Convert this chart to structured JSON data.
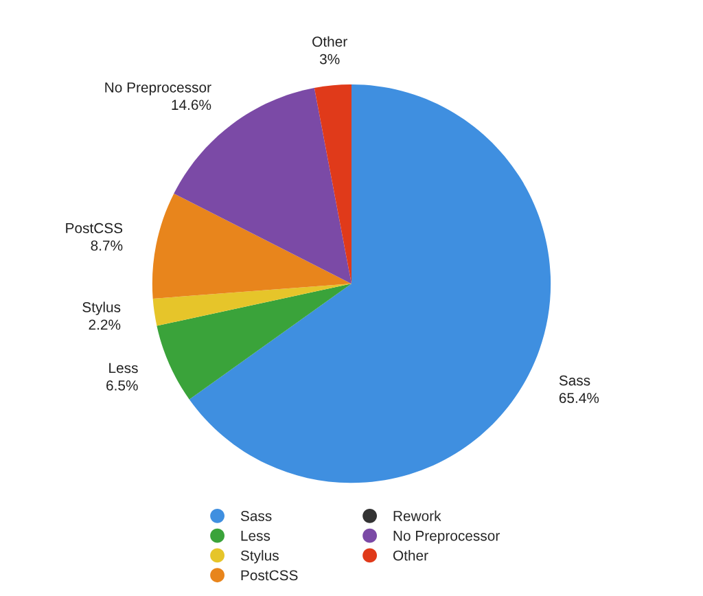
{
  "chart_data": {
    "type": "pie",
    "categories": [
      "Sass",
      "Less",
      "Stylus",
      "PostCSS",
      "Rework",
      "No Preprocessor",
      "Other"
    ],
    "values": [
      65.4,
      6.5,
      2.2,
      8.7,
      0,
      14.6,
      3
    ],
    "value_labels": [
      "65.4%",
      "6.5%",
      "2.2%",
      "8.7%",
      null,
      "14.6%",
      "3%"
    ],
    "colors": [
      "#3f8fe0",
      "#3aa33a",
      "#e6c52a",
      "#e8851c",
      "#333333",
      "#7b4aa6",
      "#e03a1a"
    ],
    "legend": "bottom"
  }
}
